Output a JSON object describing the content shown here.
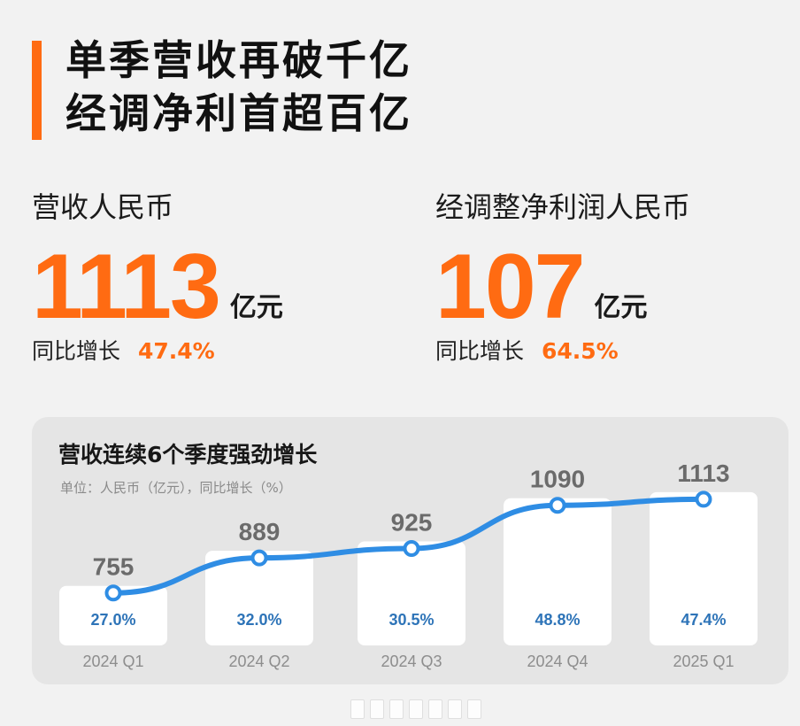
{
  "headline": {
    "line1": "单季营收再破千亿",
    "line2": "经调净利首超百亿"
  },
  "metrics": {
    "revenue": {
      "label": "营收人民币",
      "value": "1113",
      "unit": "亿元",
      "growth_label": "同比增长",
      "growth_value": "47.4%"
    },
    "adjusted_net_profit": {
      "label": "经调整净利润人民币",
      "value": "107",
      "unit": "亿元",
      "growth_label": "同比增长",
      "growth_value": "64.5%"
    }
  },
  "colors": {
    "accent_orange": "#ff6b12",
    "line_blue": "#2f8de4",
    "percent_blue": "#2e74b8"
  },
  "chart_data": {
    "type": "line",
    "title": "营收连续6个季度强劲增长",
    "subtitle": "单位：人民币（亿元），同比增长（%）",
    "categories": [
      "2024 Q1",
      "2024 Q2",
      "2024 Q3",
      "2024 Q4",
      "2025 Q1"
    ],
    "series": [
      {
        "name": "营收",
        "values": [
          755,
          889,
          925,
          1090,
          1113
        ]
      }
    ],
    "yoy_growth": [
      "27.0%",
      "32.0%",
      "30.5%",
      "48.8%",
      "47.4%"
    ],
    "value_labels": [
      "755",
      "889",
      "925",
      "1090",
      "1113"
    ],
    "xlabel": "",
    "ylabel": "",
    "ylim": [
      700,
      1150
    ],
    "grid": false,
    "legend": "none"
  }
}
